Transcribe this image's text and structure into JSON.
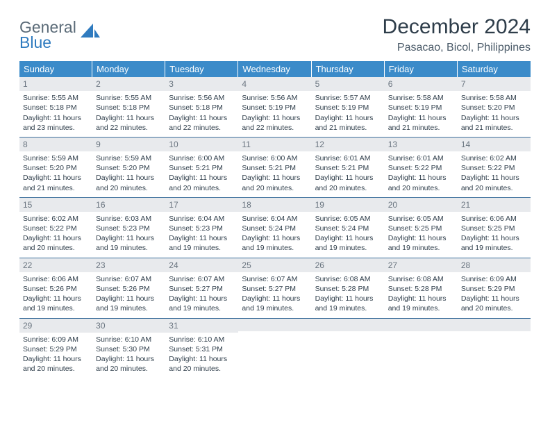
{
  "logo": {
    "general": "General",
    "blue": "Blue"
  },
  "title": "December 2024",
  "location": "Pasacao, Bicol, Philippines",
  "colors": {
    "header_bg": "#3b8bc9",
    "header_text": "#ffffff",
    "daynum_bg": "#e8eaed",
    "daynum_text": "#6a7580",
    "body_text": "#2e3d4a",
    "rule": "#3b6e9b",
    "logo_gray": "#5b6b78",
    "logo_blue": "#2f7bbf"
  },
  "typography": {
    "title_fontsize": 30,
    "location_fontsize": 16,
    "dayheader_fontsize": 13,
    "daynum_fontsize": 12,
    "cell_fontsize": 10.5
  },
  "type": "calendar-table",
  "columns": [
    "Sunday",
    "Monday",
    "Tuesday",
    "Wednesday",
    "Thursday",
    "Friday",
    "Saturday"
  ],
  "layout": {
    "cols": 7,
    "rows": 5,
    "start_col": 0,
    "days_in_month": 31
  },
  "days": [
    {
      "n": 1,
      "sunrise": "5:55 AM",
      "sunset": "5:18 PM",
      "daylight": "11 hours and 23 minutes."
    },
    {
      "n": 2,
      "sunrise": "5:55 AM",
      "sunset": "5:18 PM",
      "daylight": "11 hours and 22 minutes."
    },
    {
      "n": 3,
      "sunrise": "5:56 AM",
      "sunset": "5:18 PM",
      "daylight": "11 hours and 22 minutes."
    },
    {
      "n": 4,
      "sunrise": "5:56 AM",
      "sunset": "5:19 PM",
      "daylight": "11 hours and 22 minutes."
    },
    {
      "n": 5,
      "sunrise": "5:57 AM",
      "sunset": "5:19 PM",
      "daylight": "11 hours and 21 minutes."
    },
    {
      "n": 6,
      "sunrise": "5:58 AM",
      "sunset": "5:19 PM",
      "daylight": "11 hours and 21 minutes."
    },
    {
      "n": 7,
      "sunrise": "5:58 AM",
      "sunset": "5:20 PM",
      "daylight": "11 hours and 21 minutes."
    },
    {
      "n": 8,
      "sunrise": "5:59 AM",
      "sunset": "5:20 PM",
      "daylight": "11 hours and 21 minutes."
    },
    {
      "n": 9,
      "sunrise": "5:59 AM",
      "sunset": "5:20 PM",
      "daylight": "11 hours and 20 minutes."
    },
    {
      "n": 10,
      "sunrise": "6:00 AM",
      "sunset": "5:21 PM",
      "daylight": "11 hours and 20 minutes."
    },
    {
      "n": 11,
      "sunrise": "6:00 AM",
      "sunset": "5:21 PM",
      "daylight": "11 hours and 20 minutes."
    },
    {
      "n": 12,
      "sunrise": "6:01 AM",
      "sunset": "5:21 PM",
      "daylight": "11 hours and 20 minutes."
    },
    {
      "n": 13,
      "sunrise": "6:01 AM",
      "sunset": "5:22 PM",
      "daylight": "11 hours and 20 minutes."
    },
    {
      "n": 14,
      "sunrise": "6:02 AM",
      "sunset": "5:22 PM",
      "daylight": "11 hours and 20 minutes."
    },
    {
      "n": 15,
      "sunrise": "6:02 AM",
      "sunset": "5:22 PM",
      "daylight": "11 hours and 20 minutes."
    },
    {
      "n": 16,
      "sunrise": "6:03 AM",
      "sunset": "5:23 PM",
      "daylight": "11 hours and 19 minutes."
    },
    {
      "n": 17,
      "sunrise": "6:04 AM",
      "sunset": "5:23 PM",
      "daylight": "11 hours and 19 minutes."
    },
    {
      "n": 18,
      "sunrise": "6:04 AM",
      "sunset": "5:24 PM",
      "daylight": "11 hours and 19 minutes."
    },
    {
      "n": 19,
      "sunrise": "6:05 AM",
      "sunset": "5:24 PM",
      "daylight": "11 hours and 19 minutes."
    },
    {
      "n": 20,
      "sunrise": "6:05 AM",
      "sunset": "5:25 PM",
      "daylight": "11 hours and 19 minutes."
    },
    {
      "n": 21,
      "sunrise": "6:06 AM",
      "sunset": "5:25 PM",
      "daylight": "11 hours and 19 minutes."
    },
    {
      "n": 22,
      "sunrise": "6:06 AM",
      "sunset": "5:26 PM",
      "daylight": "11 hours and 19 minutes."
    },
    {
      "n": 23,
      "sunrise": "6:07 AM",
      "sunset": "5:26 PM",
      "daylight": "11 hours and 19 minutes."
    },
    {
      "n": 24,
      "sunrise": "6:07 AM",
      "sunset": "5:27 PM",
      "daylight": "11 hours and 19 minutes."
    },
    {
      "n": 25,
      "sunrise": "6:07 AM",
      "sunset": "5:27 PM",
      "daylight": "11 hours and 19 minutes."
    },
    {
      "n": 26,
      "sunrise": "6:08 AM",
      "sunset": "5:28 PM",
      "daylight": "11 hours and 19 minutes."
    },
    {
      "n": 27,
      "sunrise": "6:08 AM",
      "sunset": "5:28 PM",
      "daylight": "11 hours and 19 minutes."
    },
    {
      "n": 28,
      "sunrise": "6:09 AM",
      "sunset": "5:29 PM",
      "daylight": "11 hours and 20 minutes."
    },
    {
      "n": 29,
      "sunrise": "6:09 AM",
      "sunset": "5:29 PM",
      "daylight": "11 hours and 20 minutes."
    },
    {
      "n": 30,
      "sunrise": "6:10 AM",
      "sunset": "5:30 PM",
      "daylight": "11 hours and 20 minutes."
    },
    {
      "n": 31,
      "sunrise": "6:10 AM",
      "sunset": "5:31 PM",
      "daylight": "11 hours and 20 minutes."
    }
  ],
  "labels": {
    "sunrise": "Sunrise: ",
    "sunset": "Sunset: ",
    "daylight": "Daylight: "
  }
}
